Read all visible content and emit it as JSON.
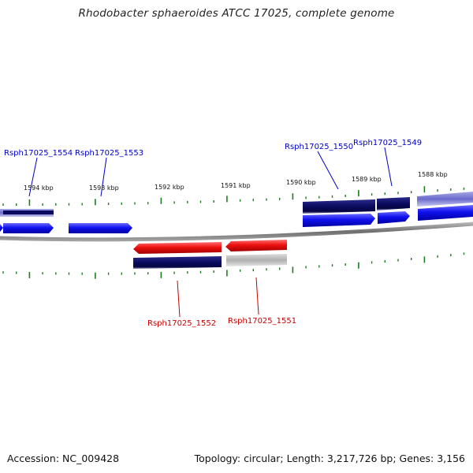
{
  "title": "Rhodobacter sphaeroides ATCC 17025, complete genome",
  "footer": {
    "accession": "Accession: NC_009428",
    "stats": "Topology: circular; Length: 3,217,726 bp; Genes: 3,156"
  },
  "colors": {
    "forward_gene": "#1414e6",
    "reverse_gene": "#e61414",
    "cds_dark": "#0a0a6e",
    "cds_light": "#8c8cd2",
    "pseudo_gray": "#b4b4b4",
    "tick": "#1e7a1e",
    "backbone": "#7a7a7a",
    "label_forward": "#0000c8",
    "label_reverse": "#c80000"
  },
  "kbp_labels": [
    "1594 kbp",
    "1593 kbp",
    "1592 kbp",
    "1591 kbp",
    "1590 kbp",
    "1589 kbp",
    "1588 kbp"
  ],
  "gene_labels": {
    "g1554": "Rsph17025_1554",
    "g1553": "Rsph17025_1553",
    "g1550": "Rsph17025_1550",
    "g1549": "Rsph17025_1549",
    "g1552": "Rsph17025_1552",
    "g1551": "Rsph17025_1551"
  }
}
